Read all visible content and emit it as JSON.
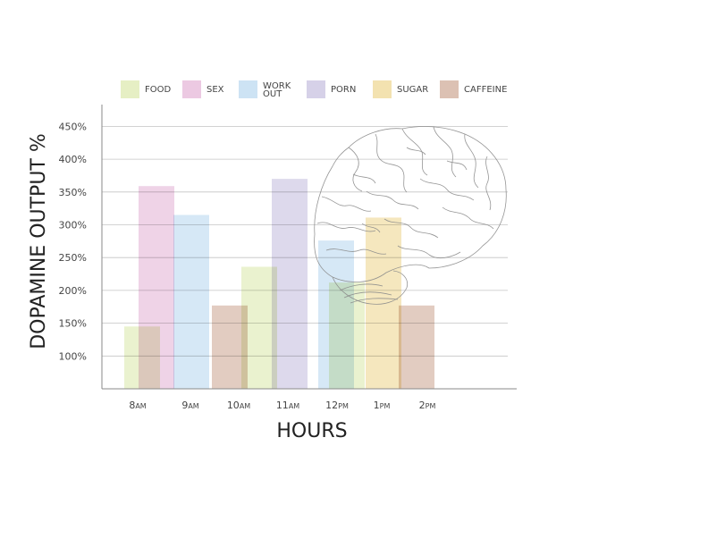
{
  "chart_data": {
    "type": "bar",
    "title": "",
    "xlabel": "HOURS",
    "ylabel": "DOPAMINE OUTPUT %",
    "ylim": [
      50,
      460
    ],
    "yticks": [
      "100%",
      "150%",
      "200%",
      "250%",
      "300%",
      "350%",
      "400%",
      "450%"
    ],
    "categories": [
      {
        "main": "8",
        "suffix": "AM"
      },
      {
        "main": "9",
        "suffix": "AM"
      },
      {
        "main": "10",
        "suffix": "AM"
      },
      {
        "main": "11",
        "suffix": "AM"
      },
      {
        "main": "12",
        "suffix": "PM"
      },
      {
        "main": "1",
        "suffix": "PM"
      },
      {
        "main": "2",
        "suffix": "PM"
      }
    ],
    "grid": true,
    "legend_position": "top",
    "legend": [
      {
        "label": "FOOD",
        "color": "#e6efc4"
      },
      {
        "label": "SEX",
        "color": "#ecc9e2"
      },
      {
        "label": "WORK OUT",
        "lines": [
          "WORK",
          "OUT"
        ],
        "color": "#cde3f4"
      },
      {
        "label": "PORN",
        "color": "#d6d1e8"
      },
      {
        "label": "SUGAR",
        "color": "#f3e2b0"
      },
      {
        "label": "CAFFEINE",
        "color": "#dcc1b3"
      }
    ],
    "bars": [
      {
        "category": "8AM",
        "series": "FOOD",
        "value": 145
      },
      {
        "category": "8AM",
        "series": "SEX",
        "value": 359
      },
      {
        "category": "9AM",
        "series": "WORK OUT",
        "value": 315
      },
      {
        "category": "10AM",
        "series": "CAFFEINE",
        "value": 177
      },
      {
        "category": "10AM",
        "series": "FOOD",
        "value": 236
      },
      {
        "category": "11AM",
        "series": "PORN",
        "value": 370
      },
      {
        "category": "12PM",
        "series": "WORK OUT",
        "value": 276
      },
      {
        "category": "12PM",
        "series": "FOOD",
        "value": 212
      },
      {
        "category": "1PM",
        "series": "SUGAR",
        "value": 311
      },
      {
        "category": "2PM",
        "series": "CAFFEINE",
        "value": 177
      }
    ],
    "decoration": "brain-outline"
  }
}
